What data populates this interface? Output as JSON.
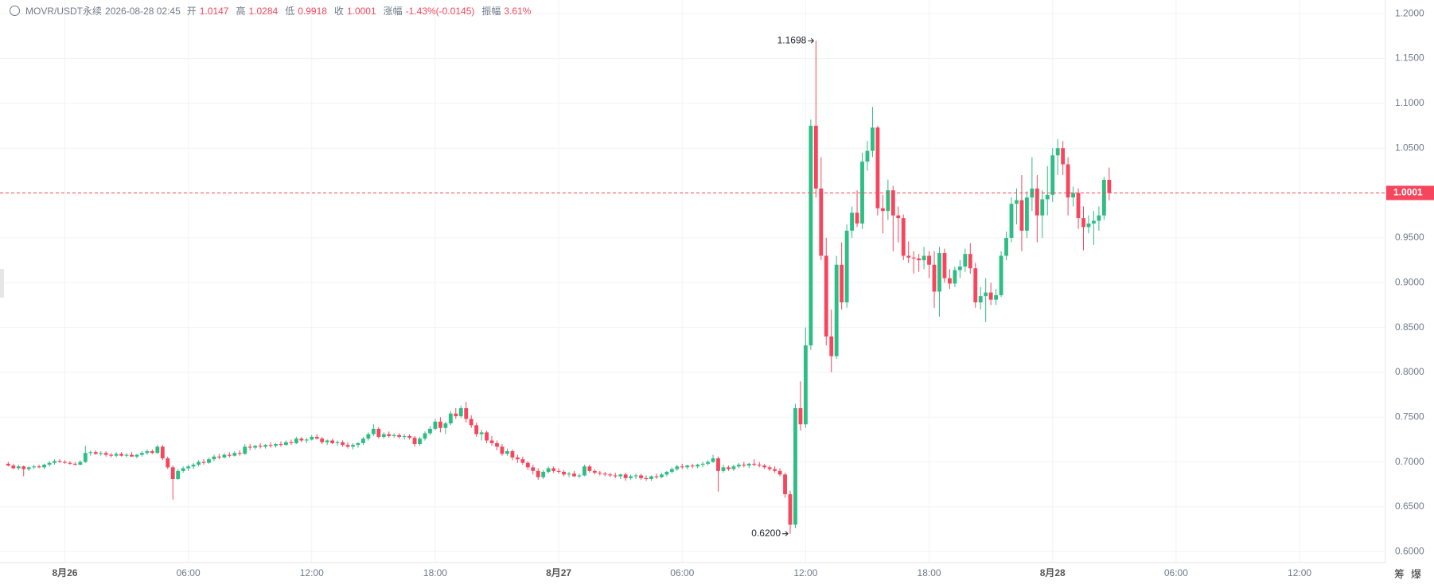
{
  "header": {
    "symbol": "MOVR/USDT永续",
    "time": "2026-08-28 02:45",
    "open_label": "开",
    "high_label": "高",
    "low_label": "低",
    "close_label": "收",
    "change_label": "涨幅",
    "change": "-1.43%(-0.0145)",
    "amplitude_label": "振幅",
    "amplitude": "3.61%"
  },
  "tools": [
    "筹",
    "爆"
  ],
  "chart_data": {
    "type": "candlestick",
    "up_color": "#2ebd85",
    "down_color": "#f6465d",
    "grid": true,
    "max_label": "1.1698",
    "min_label": "0.6200",
    "xlim": [
      -1.6,
      267.7
    ],
    "xticks": [
      {
        "value": 11,
        "label": "8月26"
      },
      {
        "value": 35,
        "label": "06:00"
      },
      {
        "value": 59,
        "label": "12:00"
      },
      {
        "value": 83,
        "label": "18:00"
      },
      {
        "value": 107,
        "label": "8月27"
      },
      {
        "value": 131,
        "label": "06:00"
      },
      {
        "value": 155,
        "label": "12:00"
      },
      {
        "value": 179,
        "label": "18:00"
      },
      {
        "value": 203,
        "label": "8月28"
      },
      {
        "value": 227,
        "label": "06:00"
      },
      {
        "value": 251,
        "label": "12:00"
      }
    ],
    "ylim": [
      0.5878,
      1.2153
    ],
    "yticks": [
      {
        "value": 0.6,
        "label": "0.6000"
      },
      {
        "value": 0.65,
        "label": "0.6500"
      },
      {
        "value": 0.7,
        "label": "0.7000"
      },
      {
        "value": 0.75,
        "label": "0.7500"
      },
      {
        "value": 0.8,
        "label": "0.8000"
      },
      {
        "value": 0.85,
        "label": "0.8500"
      },
      {
        "value": 0.9,
        "label": "0.9000"
      },
      {
        "value": 0.95,
        "label": "0.9500"
      },
      {
        "value": 1.0,
        "label": "1.0000"
      },
      {
        "value": 1.05,
        "label": "1.0500"
      },
      {
        "value": 1.1,
        "label": "1.1000"
      },
      {
        "value": 1.15,
        "label": "1.1500"
      },
      {
        "value": 1.2,
        "label": "1.2000"
      }
    ],
    "candles": [
      [
        0.698,
        0.7,
        0.695,
        0.696
      ],
      [
        0.696,
        0.698,
        0.692,
        0.693
      ],
      [
        0.693,
        0.697,
        0.691,
        0.695
      ],
      [
        0.695,
        0.696,
        0.684,
        0.692
      ],
      [
        0.692,
        0.695,
        0.69,
        0.694
      ],
      [
        0.694,
        0.697,
        0.692,
        0.695
      ],
      [
        0.695,
        0.697,
        0.693,
        0.694
      ],
      [
        0.694,
        0.698,
        0.692,
        0.697
      ],
      [
        0.697,
        0.701,
        0.695,
        0.699
      ],
      [
        0.699,
        0.703,
        0.697,
        0.701
      ],
      [
        0.701,
        0.703,
        0.699,
        0.7
      ],
      [
        0.7,
        0.702,
        0.698,
        0.699
      ],
      [
        0.699,
        0.701,
        0.697,
        0.698
      ],
      [
        0.698,
        0.7,
        0.696,
        0.697
      ],
      [
        0.697,
        0.702,
        0.696,
        0.7
      ],
      [
        0.7,
        0.718,
        0.699,
        0.71
      ],
      [
        0.71,
        0.713,
        0.707,
        0.711
      ],
      [
        0.711,
        0.713,
        0.708,
        0.709
      ],
      [
        0.709,
        0.712,
        0.707,
        0.71
      ],
      [
        0.71,
        0.712,
        0.706,
        0.708
      ],
      [
        0.708,
        0.71,
        0.705,
        0.707
      ],
      [
        0.707,
        0.711,
        0.705,
        0.709
      ],
      [
        0.709,
        0.711,
        0.706,
        0.707
      ],
      [
        0.707,
        0.71,
        0.705,
        0.708
      ],
      [
        0.708,
        0.711,
        0.706,
        0.706
      ],
      [
        0.706,
        0.709,
        0.704,
        0.708
      ],
      [
        0.708,
        0.712,
        0.706,
        0.71
      ],
      [
        0.71,
        0.714,
        0.708,
        0.712
      ],
      [
        0.712,
        0.714,
        0.709,
        0.71
      ],
      [
        0.71,
        0.719,
        0.709,
        0.717
      ],
      [
        0.717,
        0.719,
        0.702,
        0.704
      ],
      [
        0.704,
        0.706,
        0.692,
        0.694
      ],
      [
        0.694,
        0.696,
        0.658,
        0.681
      ],
      [
        0.681,
        0.692,
        0.68,
        0.69
      ],
      [
        0.69,
        0.695,
        0.688,
        0.693
      ],
      [
        0.693,
        0.697,
        0.69,
        0.695
      ],
      [
        0.695,
        0.699,
        0.692,
        0.697
      ],
      [
        0.697,
        0.702,
        0.695,
        0.7
      ],
      [
        0.7,
        0.703,
        0.697,
        0.699
      ],
      [
        0.699,
        0.705,
        0.698,
        0.703
      ],
      [
        0.703,
        0.708,
        0.701,
        0.706
      ],
      [
        0.706,
        0.709,
        0.703,
        0.705
      ],
      [
        0.705,
        0.71,
        0.704,
        0.708
      ],
      [
        0.708,
        0.711,
        0.705,
        0.707
      ],
      [
        0.707,
        0.712,
        0.706,
        0.71
      ],
      [
        0.71,
        0.713,
        0.707,
        0.709
      ],
      [
        0.709,
        0.72,
        0.708,
        0.717
      ],
      [
        0.717,
        0.72,
        0.713,
        0.716
      ],
      [
        0.716,
        0.719,
        0.714,
        0.718
      ],
      [
        0.718,
        0.721,
        0.715,
        0.717
      ],
      [
        0.717,
        0.72,
        0.715,
        0.719
      ],
      [
        0.719,
        0.722,
        0.716,
        0.718
      ],
      [
        0.718,
        0.721,
        0.716,
        0.72
      ],
      [
        0.72,
        0.723,
        0.717,
        0.719
      ],
      [
        0.719,
        0.724,
        0.718,
        0.722
      ],
      [
        0.722,
        0.725,
        0.719,
        0.721
      ],
      [
        0.721,
        0.728,
        0.72,
        0.726
      ],
      [
        0.726,
        0.728,
        0.722,
        0.724
      ],
      [
        0.724,
        0.727,
        0.721,
        0.725
      ],
      [
        0.725,
        0.73,
        0.724,
        0.728
      ],
      [
        0.728,
        0.731,
        0.725,
        0.726
      ],
      [
        0.726,
        0.728,
        0.72,
        0.722
      ],
      [
        0.722,
        0.725,
        0.719,
        0.724
      ],
      [
        0.724,
        0.726,
        0.72,
        0.721
      ],
      [
        0.721,
        0.724,
        0.718,
        0.722
      ],
      [
        0.722,
        0.724,
        0.717,
        0.719
      ],
      [
        0.719,
        0.722,
        0.715,
        0.717
      ],
      [
        0.717,
        0.721,
        0.714,
        0.719
      ],
      [
        0.719,
        0.722,
        0.716,
        0.721
      ],
      [
        0.721,
        0.728,
        0.719,
        0.726
      ],
      [
        0.726,
        0.733,
        0.724,
        0.731
      ],
      [
        0.731,
        0.742,
        0.729,
        0.737
      ],
      [
        0.737,
        0.739,
        0.726,
        0.728
      ],
      [
        0.728,
        0.733,
        0.726,
        0.731
      ],
      [
        0.731,
        0.734,
        0.727,
        0.729
      ],
      [
        0.729,
        0.732,
        0.727,
        0.73
      ],
      [
        0.73,
        0.732,
        0.726,
        0.728
      ],
      [
        0.728,
        0.731,
        0.725,
        0.729
      ],
      [
        0.729,
        0.731,
        0.725,
        0.727
      ],
      [
        0.727,
        0.729,
        0.717,
        0.72
      ],
      [
        0.72,
        0.728,
        0.718,
        0.726
      ],
      [
        0.726,
        0.734,
        0.724,
        0.732
      ],
      [
        0.732,
        0.74,
        0.73,
        0.737
      ],
      [
        0.737,
        0.748,
        0.735,
        0.745
      ],
      [
        0.745,
        0.75,
        0.733,
        0.738
      ],
      [
        0.738,
        0.745,
        0.731,
        0.743
      ],
      [
        0.743,
        0.757,
        0.741,
        0.754
      ],
      [
        0.754,
        0.76,
        0.748,
        0.751
      ],
      [
        0.751,
        0.763,
        0.749,
        0.76
      ],
      [
        0.76,
        0.767,
        0.744,
        0.748
      ],
      [
        0.748,
        0.752,
        0.738,
        0.741
      ],
      [
        0.741,
        0.744,
        0.728,
        0.731
      ],
      [
        0.731,
        0.736,
        0.724,
        0.733
      ],
      [
        0.733,
        0.735,
        0.721,
        0.724
      ],
      [
        0.724,
        0.729,
        0.718,
        0.721
      ],
      [
        0.721,
        0.724,
        0.713,
        0.717
      ],
      [
        0.717,
        0.72,
        0.707,
        0.709
      ],
      [
        0.709,
        0.715,
        0.707,
        0.712
      ],
      [
        0.712,
        0.714,
        0.702,
        0.705
      ],
      [
        0.705,
        0.708,
        0.699,
        0.703
      ],
      [
        0.703,
        0.706,
        0.697,
        0.699
      ],
      [
        0.699,
        0.701,
        0.691,
        0.694
      ],
      [
        0.694,
        0.697,
        0.686,
        0.69
      ],
      [
        0.69,
        0.693,
        0.68,
        0.683
      ],
      [
        0.683,
        0.691,
        0.681,
        0.689
      ],
      [
        0.689,
        0.695,
        0.687,
        0.693
      ],
      [
        0.693,
        0.695,
        0.688,
        0.69
      ],
      [
        0.69,
        0.693,
        0.687,
        0.689
      ],
      [
        0.689,
        0.691,
        0.684,
        0.686
      ],
      [
        0.686,
        0.689,
        0.683,
        0.687
      ],
      [
        0.687,
        0.69,
        0.683,
        0.684
      ],
      [
        0.684,
        0.687,
        0.682,
        0.685
      ],
      [
        0.685,
        0.697,
        0.684,
        0.695
      ],
      [
        0.695,
        0.697,
        0.688,
        0.69
      ],
      [
        0.69,
        0.692,
        0.686,
        0.688
      ],
      [
        0.688,
        0.69,
        0.685,
        0.687
      ],
      [
        0.687,
        0.689,
        0.684,
        0.686
      ],
      [
        0.686,
        0.688,
        0.683,
        0.685
      ],
      [
        0.685,
        0.688,
        0.682,
        0.684
      ],
      [
        0.684,
        0.687,
        0.681,
        0.686
      ],
      [
        0.686,
        0.688,
        0.679,
        0.682
      ],
      [
        0.682,
        0.686,
        0.68,
        0.684
      ],
      [
        0.684,
        0.687,
        0.681,
        0.685
      ],
      [
        0.685,
        0.687,
        0.68,
        0.682
      ],
      [
        0.682,
        0.685,
        0.679,
        0.681
      ],
      [
        0.681,
        0.685,
        0.679,
        0.684
      ],
      [
        0.684,
        0.687,
        0.681,
        0.683
      ],
      [
        0.683,
        0.688,
        0.682,
        0.686
      ],
      [
        0.686,
        0.69,
        0.684,
        0.689
      ],
      [
        0.689,
        0.694,
        0.687,
        0.692
      ],
      [
        0.692,
        0.697,
        0.69,
        0.695
      ],
      [
        0.695,
        0.698,
        0.692,
        0.694
      ],
      [
        0.694,
        0.697,
        0.692,
        0.696
      ],
      [
        0.696,
        0.698,
        0.693,
        0.695
      ],
      [
        0.695,
        0.698,
        0.693,
        0.697
      ],
      [
        0.697,
        0.7,
        0.694,
        0.698
      ],
      [
        0.698,
        0.702,
        0.696,
        0.7
      ],
      [
        0.7,
        0.708,
        0.699,
        0.704
      ],
      [
        0.704,
        0.706,
        0.667,
        0.69
      ],
      [
        0.69,
        0.697,
        0.688,
        0.694
      ],
      [
        0.694,
        0.696,
        0.69,
        0.692
      ],
      [
        0.692,
        0.697,
        0.69,
        0.695
      ],
      [
        0.695,
        0.699,
        0.693,
        0.697
      ],
      [
        0.697,
        0.7,
        0.694,
        0.696
      ],
      [
        0.696,
        0.699,
        0.693,
        0.698
      ],
      [
        0.698,
        0.703,
        0.695,
        0.697
      ],
      [
        0.697,
        0.7,
        0.694,
        0.696
      ],
      [
        0.696,
        0.698,
        0.692,
        0.694
      ],
      [
        0.694,
        0.696,
        0.69,
        0.692
      ],
      [
        0.692,
        0.695,
        0.688,
        0.69
      ],
      [
        0.69,
        0.693,
        0.684,
        0.686
      ],
      [
        0.686,
        0.688,
        0.66,
        0.664
      ],
      [
        0.664,
        0.668,
        0.62,
        0.63
      ],
      [
        0.63,
        0.765,
        0.626,
        0.76
      ],
      [
        0.76,
        0.79,
        0.735,
        0.742
      ],
      [
        0.742,
        0.85,
        0.738,
        0.83
      ],
      [
        0.83,
        1.082,
        0.825,
        1.075
      ],
      [
        1.075,
        1.1698,
        0.995,
        1.005
      ],
      [
        1.005,
        1.04,
        0.925,
        0.93
      ],
      [
        0.93,
        0.95,
        0.83,
        0.84
      ],
      [
        0.84,
        0.87,
        0.8,
        0.818
      ],
      [
        0.818,
        0.93,
        0.815,
        0.92
      ],
      [
        0.92,
        0.945,
        0.87,
        0.878
      ],
      [
        0.878,
        0.965,
        0.872,
        0.958
      ],
      [
        0.958,
        0.985,
        0.95,
        0.978
      ],
      [
        0.978,
        1.003,
        0.962,
        0.966
      ],
      [
        0.966,
        1.045,
        0.96,
        1.035
      ],
      [
        1.035,
        1.058,
        1.025,
        1.047
      ],
      [
        1.047,
        1.096,
        1.04,
        1.073
      ],
      [
        1.073,
        1.075,
        0.975,
        0.983
      ],
      [
        0.983,
        0.998,
        0.955,
        0.98
      ],
      [
        0.98,
        1.015,
        0.97,
        1.003
      ],
      [
        1.003,
        1.008,
        0.935,
        0.975
      ],
      [
        0.975,
        0.985,
        0.945,
        0.972
      ],
      [
        0.972,
        0.976,
        0.925,
        0.93
      ],
      [
        0.93,
        0.946,
        0.922,
        0.928
      ],
      [
        0.928,
        0.935,
        0.91,
        0.927
      ],
      [
        0.927,
        0.932,
        0.912,
        0.925
      ],
      [
        0.925,
        0.94,
        0.915,
        0.93
      ],
      [
        0.93,
        0.935,
        0.905,
        0.92
      ],
      [
        0.92,
        0.935,
        0.872,
        0.89
      ],
      [
        0.89,
        0.94,
        0.862,
        0.933
      ],
      [
        0.933,
        0.938,
        0.9,
        0.905
      ],
      [
        0.905,
        0.915,
        0.893,
        0.899
      ],
      [
        0.899,
        0.918,
        0.895,
        0.914
      ],
      [
        0.914,
        0.925,
        0.905,
        0.918
      ],
      [
        0.918,
        0.938,
        0.912,
        0.932
      ],
      [
        0.932,
        0.944,
        0.91,
        0.916
      ],
      [
        0.916,
        0.922,
        0.872,
        0.878
      ],
      [
        0.878,
        0.895,
        0.87,
        0.885
      ],
      [
        0.885,
        0.905,
        0.856,
        0.889
      ],
      [
        0.889,
        0.9,
        0.875,
        0.881
      ],
      [
        0.881,
        0.893,
        0.875,
        0.886
      ],
      [
        0.886,
        0.935,
        0.884,
        0.93
      ],
      [
        0.93,
        0.957,
        0.925,
        0.95
      ],
      [
        0.95,
        0.995,
        0.945,
        0.988
      ],
      [
        0.988,
        1.005,
        0.965,
        0.992
      ],
      [
        0.992,
        1.02,
        0.935,
        0.958
      ],
      [
        0.958,
        1.002,
        0.95,
        0.995
      ],
      [
        0.995,
        1.04,
        0.98,
        1.005
      ],
      [
        1.005,
        1.02,
        0.945,
        0.975
      ],
      [
        0.975,
        1.003,
        0.95,
        0.993
      ],
      [
        0.993,
        1.03,
        0.975,
        0.998
      ],
      [
        0.998,
        1.05,
        0.99,
        1.042
      ],
      [
        1.042,
        1.06,
        1.02,
        1.05
      ],
      [
        1.05,
        1.058,
        1.02,
        1.032
      ],
      [
        1.032,
        1.04,
        0.975,
        0.995
      ],
      [
        0.995,
        1.007,
        0.985,
        1.0
      ],
      [
        1.0,
        1.005,
        0.96,
        0.972
      ],
      [
        0.972,
        0.985,
        0.936,
        0.962
      ],
      [
        0.962,
        0.975,
        0.955,
        0.966
      ],
      [
        0.966,
        0.98,
        0.942,
        0.969
      ],
      [
        0.969,
        0.985,
        0.958,
        0.975
      ],
      [
        0.975,
        1.018,
        0.97,
        1.0147
      ],
      [
        1.0147,
        1.0284,
        0.9918,
        1.0001
      ]
    ]
  }
}
